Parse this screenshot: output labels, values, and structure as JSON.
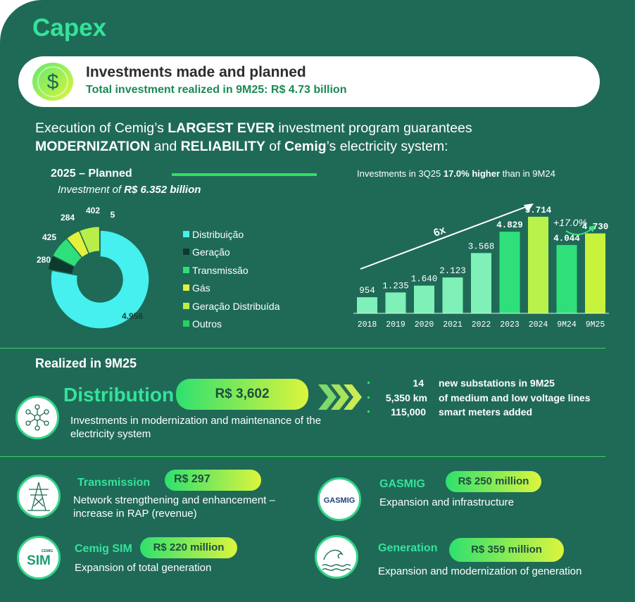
{
  "title": "Capex",
  "banner": {
    "title": "Investments made and planned",
    "subtitle": "Total investment realized in 9M25: R$ 4.73 billion",
    "icon": "dollar-icon"
  },
  "execution": {
    "p1": "Execution of Cemig’s ",
    "b1": "LARGEST EVER",
    "p2": " investment program guarantees",
    "b2": "MODERNIZATION",
    "p3": " and ",
    "b3": "RELIABILITY",
    "p4": " of ",
    "b4": "Cemig",
    "p5": "’s electricity system:"
  },
  "planned": {
    "title": "2025 – Planned",
    "sub_prefix": "Investment of ",
    "sub_value": "R$ 6.352 billion"
  },
  "colors": {
    "background": "#1f6a57",
    "accent": "#34e39a",
    "distribuicao": "#45f0ee",
    "geracao": "#0e3a2c",
    "transmissao": "#2fe07a",
    "gas": "#e4f13c",
    "geracao_distribuida": "#b9ee4a",
    "outros": "#24d35a"
  },
  "chart_data": [
    {
      "type": "pie",
      "title": "2025 – Planned",
      "categories": [
        "Distribuição",
        "Geração",
        "Transmissão",
        "Gás",
        "Geração Distribuída",
        "Outros"
      ],
      "values": [
        4956,
        280,
        425,
        284,
        402,
        5
      ],
      "labels": [
        "4.956",
        "280",
        "425",
        "284",
        "402",
        "5"
      ]
    },
    {
      "type": "bar",
      "title_prefix": "Investments in 3Q25 ",
      "title_bold": "17.0% higher",
      "title_suffix": " than in 9M24",
      "categories": [
        "2018",
        "2019",
        "2020",
        "2021",
        "2022",
        "2023",
        "2024",
        "9M24",
        "9M25"
      ],
      "values": [
        954,
        1235,
        1640,
        2123,
        3568,
        4829,
        5714,
        4044,
        4730
      ],
      "labels": [
        "954",
        "1.235",
        "1.640",
        "2.123",
        "3.568",
        "4.829",
        "5.714",
        "4.044",
        "4.730"
      ],
      "ylim": [
        0,
        6000
      ],
      "annotations": {
        "growth": "6x",
        "change": "+17.0%"
      }
    }
  ],
  "realized": {
    "title": "Realized in 9M25",
    "distribution": {
      "name": "Distribution",
      "amount": "R$ 3,602",
      "desc": "Investments in modernization and maintenance of the electricity system",
      "icon": "network-nodes-icon",
      "stats": [
        {
          "value": "14",
          "label": "new substations in 9M25"
        },
        {
          "value": "5,350 km",
          "label": "of medium and low voltage lines"
        },
        {
          "value": "115,000",
          "label": "smart meters added"
        }
      ]
    },
    "transmission": {
      "name": "Transmission",
      "amount": "R$ 297",
      "desc": "Network strengthening and enhancement – increase in RAP (revenue)",
      "icon": "transmission-tower-icon"
    },
    "gasmig": {
      "name": "GASMIG",
      "amount": "R$ 250 million",
      "desc": "Expansion and  infrastructure",
      "logo": "GASMIG"
    },
    "cemig_sim": {
      "name": "Cemig SIM",
      "amount": "R$ 220 million",
      "desc": "Expansion of total generation",
      "logo_top": "CEMIG",
      "logo_main": "SIM"
    },
    "generation": {
      "name": "Generation",
      "amount": "R$ 359 million",
      "desc": "Expansion and modernization of  generation",
      "icon": "wave-icon"
    }
  }
}
